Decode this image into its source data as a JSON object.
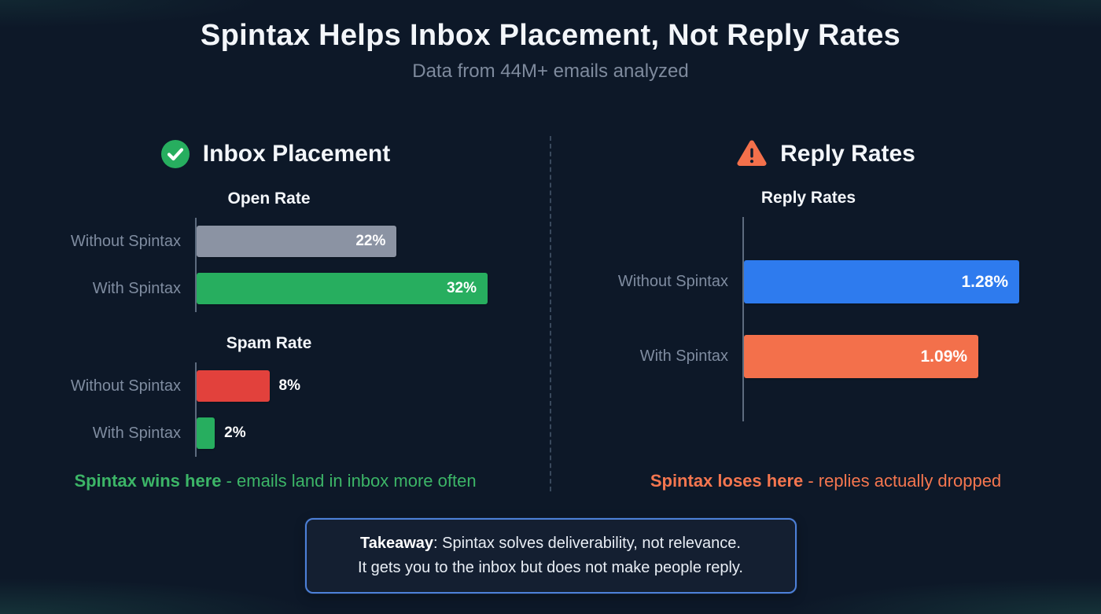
{
  "page": {
    "title": "Spintax Helps Inbox Placement, Not Reply Rates",
    "subtitle": "Data from 44M+ emails analyzed"
  },
  "panels": {
    "left": {
      "header": "Inbox Placement",
      "icon": "check-circle-icon",
      "summary_highlight": "Spintax wins here",
      "summary_rest": " - emails land in inbox more often",
      "summary_color": "#3cb567"
    },
    "right": {
      "header": "Reply Rates",
      "icon": "warning-triangle-icon",
      "summary_highlight": "Spintax loses here",
      "summary_rest": " - replies actually dropped",
      "summary_color": "#f5764f"
    }
  },
  "takeaway": {
    "label": "Takeaway",
    "line1_rest": ": Spintax solves deliverability, not relevance.",
    "line2": "It gets you to the inbox but does not make people reply."
  },
  "colors": {
    "background": "#0d1828",
    "title_text": "#f3f6fa",
    "subtitle_text": "#7e8a9d",
    "category_label": "#7f8ca0",
    "axis": "#5d6b7e",
    "divider": "#6e829b",
    "green": "#27ae5f",
    "gray_bar": "#8b93a3",
    "red_bar": "#e2413c",
    "blue_bar": "#2e7bee",
    "orange_bar": "#f3704b",
    "green_text": "#3cb567",
    "orange_text": "#f5764f",
    "takeaway_border": "#4d80d8",
    "takeaway_bg": "#141f31"
  },
  "chart_data": [
    {
      "type": "bar",
      "orientation": "horizontal",
      "title": "Open Rate",
      "categories": [
        "Without Spintax",
        "With Spintax"
      ],
      "values": [
        22,
        32
      ],
      "value_labels": [
        "22%",
        "32%"
      ],
      "bar_colors": [
        "#8b93a3",
        "#27ae5f"
      ],
      "value_label_position": [
        "inside",
        "inside"
      ],
      "xlim": [
        0,
        32
      ],
      "unit": "%",
      "grid": false,
      "legend": false
    },
    {
      "type": "bar",
      "orientation": "horizontal",
      "title": "Spam Rate",
      "categories": [
        "Without Spintax",
        "With Spintax"
      ],
      "values": [
        8,
        2
      ],
      "value_labels": [
        "8%",
        "2%"
      ],
      "bar_colors": [
        "#e2413c",
        "#27ae5f"
      ],
      "value_label_position": [
        "outside",
        "outside"
      ],
      "xlim": [
        0,
        32
      ],
      "unit": "%",
      "grid": false,
      "legend": false
    },
    {
      "type": "bar",
      "orientation": "horizontal",
      "title": "Reply Rates",
      "categories": [
        "Without Spintax",
        "With Spintax"
      ],
      "values": [
        1.28,
        1.09
      ],
      "value_labels": [
        "1.28%",
        "1.09%"
      ],
      "bar_colors": [
        "#2e7bee",
        "#f3704b"
      ],
      "value_label_position": [
        "inside",
        "inside"
      ],
      "xlim": [
        0,
        1.28
      ],
      "unit": "%",
      "grid": false,
      "legend": false
    }
  ]
}
